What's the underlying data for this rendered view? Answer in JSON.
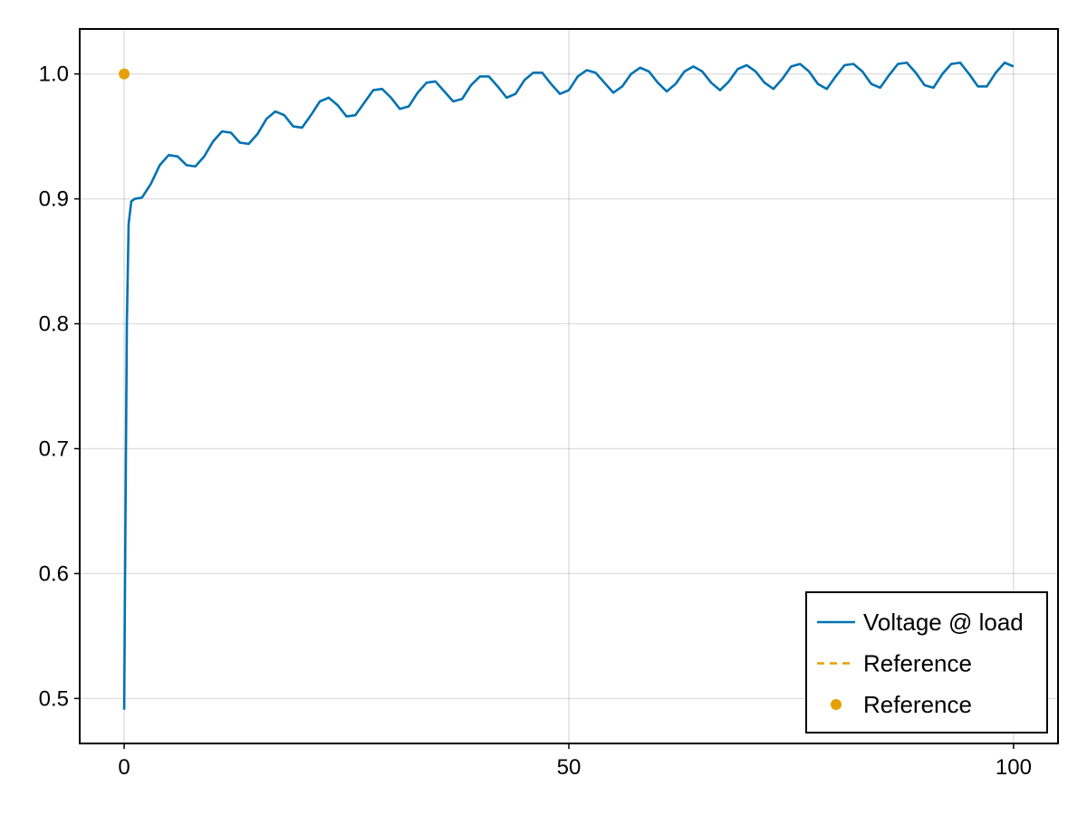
{
  "chart_data": {
    "type": "line",
    "title": "",
    "xlabel": "",
    "ylabel": "",
    "xlim": [
      -5,
      105
    ],
    "ylim": [
      0.464,
      1.036
    ],
    "xticks": [
      0,
      50,
      100
    ],
    "xtick_labels": [
      "0",
      "50",
      "100"
    ],
    "yticks": [
      0.5,
      0.6,
      0.7,
      0.8,
      0.9,
      1.0
    ],
    "ytick_labels": [
      "0.5",
      "0.6",
      "0.7",
      "0.8",
      "0.9",
      "1.0"
    ],
    "grid": true,
    "legend_position": "bottom-right",
    "series": [
      {
        "name": "Voltage @ load",
        "kind": "line",
        "style": "solid",
        "color": "#0072B2",
        "x": [
          0,
          0.1,
          0.2,
          0.3,
          0.5,
          0.8,
          1.2,
          2,
          3,
          4,
          5,
          6,
          7,
          8,
          9,
          10,
          11,
          12,
          13,
          14,
          15,
          16,
          17,
          18,
          19,
          20,
          21,
          22,
          23,
          24,
          25,
          26,
          27,
          28,
          29,
          30,
          31,
          32,
          33,
          34,
          35,
          36,
          37,
          38,
          39,
          40,
          41,
          42,
          43,
          44,
          45,
          46,
          47,
          48,
          49,
          50,
          51,
          52,
          53,
          54,
          55,
          56,
          57,
          58,
          59,
          60,
          61,
          62,
          63,
          64,
          65,
          66,
          67,
          68,
          69,
          70,
          71,
          72,
          73,
          74,
          75,
          76,
          77,
          78,
          79,
          80,
          81,
          82,
          83,
          84,
          85,
          86,
          87,
          88,
          89,
          90,
          91,
          92,
          93,
          94,
          95,
          96,
          97,
          98,
          99,
          100
        ],
        "y": [
          0.491,
          0.6,
          0.7,
          0.8,
          0.88,
          0.898,
          0.9,
          0.901,
          0.912,
          0.927,
          0.935,
          0.934,
          0.927,
          0.926,
          0.934,
          0.946,
          0.954,
          0.953,
          0.945,
          0.944,
          0.952,
          0.964,
          0.97,
          0.967,
          0.958,
          0.957,
          0.967,
          0.978,
          0.981,
          0.975,
          0.966,
          0.967,
          0.977,
          0.987,
          0.988,
          0.981,
          0.972,
          0.974,
          0.985,
          0.993,
          0.994,
          0.986,
          0.978,
          0.98,
          0.991,
          0.998,
          0.998,
          0.99,
          0.981,
          0.984,
          0.995,
          1.001,
          1.001,
          0.992,
          0.984,
          0.987,
          0.998,
          1.003,
          1.001,
          0.993,
          0.985,
          0.99,
          1.0,
          1.005,
          1.002,
          0.993,
          0.986,
          0.992,
          1.002,
          1.006,
          1.002,
          0.993,
          0.987,
          0.994,
          1.004,
          1.007,
          1.002,
          0.993,
          0.988,
          0.996,
          1.006,
          1.008,
          1.002,
          0.992,
          0.988,
          0.998,
          1.007,
          1.008,
          1.002,
          0.992,
          0.989,
          0.999,
          1.008,
          1.009,
          1.001,
          0.991,
          0.989,
          1.0,
          1.008,
          1.009,
          1.0,
          0.99,
          0.99,
          1.001,
          1.009,
          1.006
        ]
      },
      {
        "name": "Reference",
        "kind": "line",
        "style": "dashed",
        "color": "#E69F00",
        "x": [],
        "y": []
      },
      {
        "name": "Reference",
        "kind": "scatter",
        "color": "#E69F00",
        "x": [
          0
        ],
        "y": [
          1.0
        ]
      }
    ]
  }
}
